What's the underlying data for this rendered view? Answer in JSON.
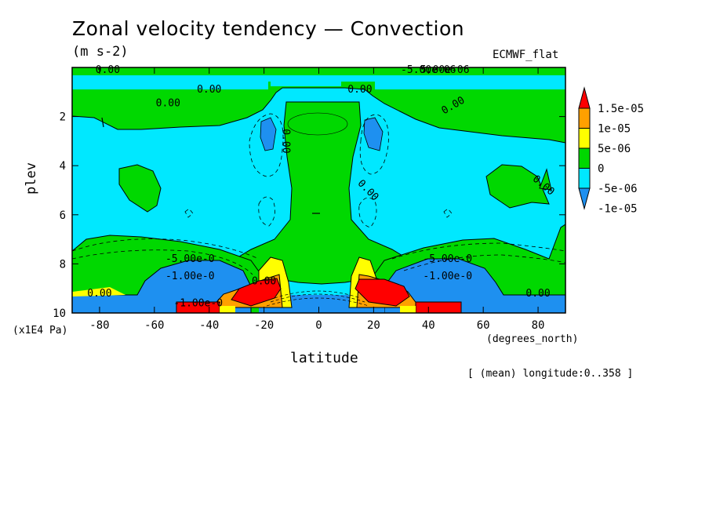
{
  "chart_data": {
    "type": "heatmap",
    "subtype": "filled-contour",
    "title": "Zonal velocity tendency — Convection",
    "units": "(m s-2)",
    "dataset": "ECMWF_flat",
    "xlabel": "latitude",
    "ylabel": "plev",
    "x_unit": "(degrees_north)",
    "y_unit": "(x1E4 Pa)",
    "footnote": "[ (mean) longitude:0..358 ]",
    "xlim": [
      -90,
      90
    ],
    "ylim": [
      10,
      0
    ],
    "y_inverted": true,
    "x_ticks": [
      "-80",
      "-60",
      "-40",
      "-20",
      "0",
      "20",
      "40",
      "60",
      "80"
    ],
    "y_ticks": [
      "2",
      "4",
      "6",
      "8",
      "10"
    ],
    "colorbar": {
      "levels": [
        "-1e-05",
        "-5e-06",
        "0",
        "5e-06",
        "1e-05",
        "1.5e-05"
      ],
      "colors": [
        "#1e90f0",
        "#00e8ff",
        "#00d800",
        "#ffff00",
        "#ffa000",
        "#ff0000"
      ],
      "extend": "both"
    },
    "contour_labels": [
      "0.00",
      "0.00",
      "0.00",
      "0.00",
      "0.00",
      "0.00",
      "0.00",
      "0.00",
      "0.00",
      "5.00e-06",
      "-5.00e-0",
      "-5.00e-0",
      "-1.00e-0",
      "-1.00e-0",
      "-1.00e-0",
      "0.00",
      "0.00",
      "-5.00e-06"
    ]
  }
}
